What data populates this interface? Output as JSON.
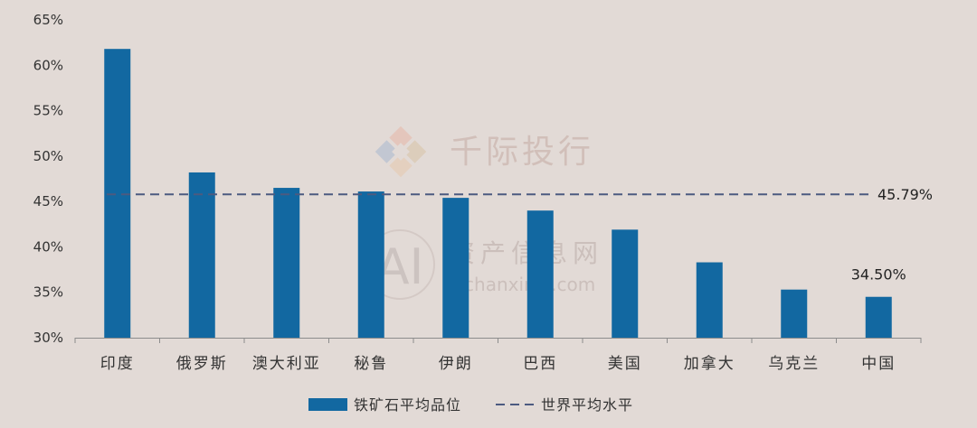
{
  "colors": {
    "background": "#e2dad6",
    "bar": "#1268a1",
    "reference_line": "#4c5a80",
    "axis": "#8c8c8c"
  },
  "watermarks": {
    "brand_name": "千际投行",
    "site_name": "资产信息网",
    "site_url": "zichanxinxi.com",
    "site_logo": "AI"
  },
  "chart_data": {
    "type": "bar",
    "categories": [
      "印度",
      "俄罗斯",
      "澳大利亚",
      "秘鲁",
      "伊朗",
      "巴西",
      "美国",
      "加拿大",
      "乌克兰",
      "中国"
    ],
    "series": [
      {
        "name": "铁矿石平均品位",
        "values": [
          61.8,
          48.2,
          46.5,
          46.1,
          45.4,
          44.0,
          41.9,
          38.3,
          35.3,
          34.5
        ]
      }
    ],
    "reference_line": {
      "name": "世界平均水平",
      "value": 45.79,
      "label": "45.79%",
      "style": "dashed"
    },
    "data_labels": [
      {
        "category": "中国",
        "text": "34.50%"
      }
    ],
    "ylim": [
      30,
      65
    ],
    "yticks": [
      30,
      35,
      40,
      45,
      50,
      55,
      60,
      65
    ],
    "ytick_labels": [
      "30%",
      "35%",
      "40%",
      "45%",
      "50%",
      "55%",
      "60%",
      "65%"
    ],
    "grid": false,
    "legend_position": "bottom-center",
    "xlabel": "",
    "ylabel": "",
    "title": ""
  }
}
